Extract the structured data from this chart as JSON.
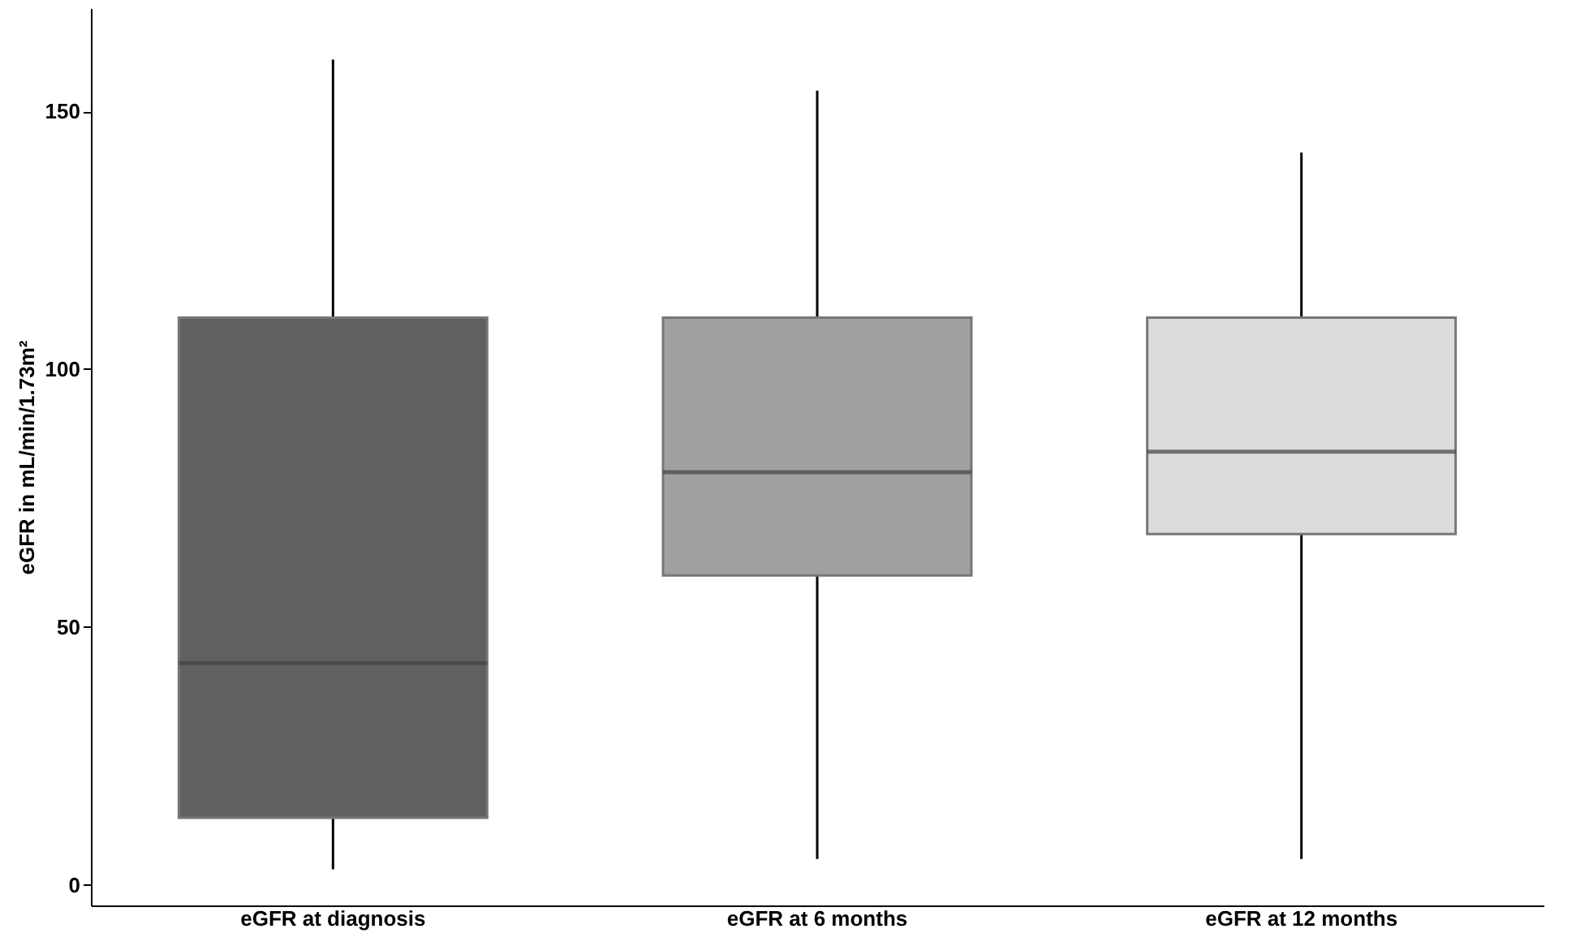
{
  "chart_data": {
    "type": "box",
    "ylabel": "eGFR in mL/min/1.73m²",
    "categories": [
      "eGFR at diagnosis",
      "eGFR at 6 months",
      "eGFR at 12 months"
    ],
    "boxes": [
      {
        "low": 3,
        "q1": 13,
        "median": 43,
        "q3": 110,
        "high": 160
      },
      {
        "low": 5,
        "q1": 60,
        "median": 80,
        "q3": 110,
        "high": 154
      },
      {
        "low": 5,
        "q1": 68,
        "median": 84,
        "q3": 110,
        "high": 142
      }
    ],
    "colors": [
      "#606060",
      "#a0a0a0",
      "#dcdcdc"
    ],
    "ylim": [
      -4,
      170
    ],
    "yticks": [
      0,
      50,
      100,
      150
    ],
    "grid": false
  }
}
